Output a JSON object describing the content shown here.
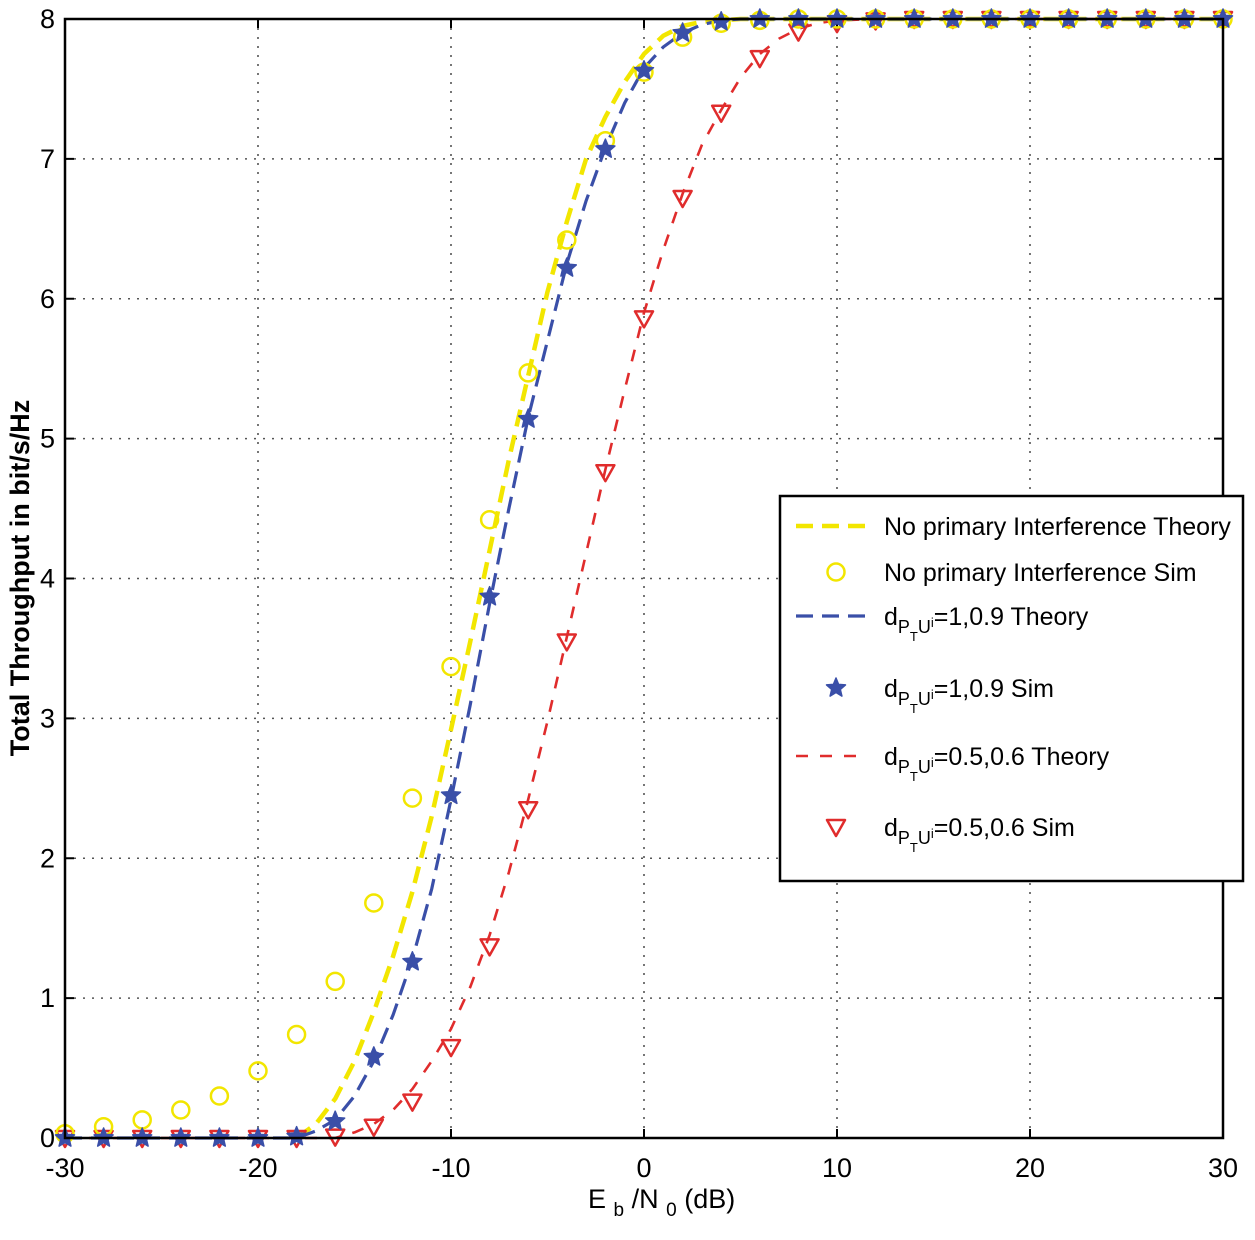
{
  "chart_data": {
    "type": "line",
    "title": "",
    "xlabel": {
      "main": "E",
      "sub1": "b",
      "mid": "/N",
      "sub2": "0",
      "tail": "(dB)"
    },
    "ylabel": "Total Throughput in bit/s/Hz",
    "xlim": [
      -30,
      30
    ],
    "ylim": [
      0,
      8
    ],
    "xticks": [
      -30,
      -20,
      -10,
      0,
      10,
      20,
      30
    ],
    "yticks": [
      0,
      1,
      2,
      3,
      4,
      5,
      6,
      7,
      8
    ],
    "grid": true,
    "legend_position": "center-right",
    "colors": {
      "yellow": "#f2e600",
      "blue": "#3a4fa8",
      "red": "#e02c2c"
    },
    "series": [
      {
        "name": "No primary Interference Theory",
        "style": "dashed-line",
        "color": "#f2e600",
        "x": [
          -18,
          -17,
          -16,
          -15,
          -14,
          -13,
          -12,
          -11,
          -10,
          -9,
          -8,
          -7,
          -6,
          -5,
          -4,
          -3,
          -2,
          -1,
          0,
          1,
          2,
          3,
          4,
          5,
          6,
          8,
          10,
          30
        ],
        "y": [
          0,
          0.1,
          0.28,
          0.55,
          0.9,
          1.3,
          1.76,
          2.3,
          2.92,
          3.55,
          4.2,
          4.85,
          5.45,
          6.05,
          6.55,
          7.0,
          7.3,
          7.55,
          7.75,
          7.88,
          7.95,
          7.98,
          7.99,
          8.0,
          8.0,
          8.0,
          8.0,
          8.0
        ]
      },
      {
        "name": "No primary Interference Sim",
        "style": "circle-marker",
        "color": "#f2e600",
        "x": [
          -30,
          -28,
          -26,
          -24,
          -22,
          -20,
          -18,
          -16,
          -14,
          -12,
          -10,
          -8,
          -6,
          -4,
          -2,
          0,
          2,
          4,
          6,
          8,
          10,
          12,
          14,
          16,
          18,
          20,
          22,
          24,
          26,
          28,
          30
        ],
        "y": [
          0.03,
          0.08,
          0.13,
          0.2,
          0.3,
          0.48,
          0.74,
          1.12,
          1.68,
          2.43,
          3.37,
          4.42,
          5.47,
          6.42,
          7.13,
          7.62,
          7.87,
          7.97,
          7.99,
          8.0,
          8.0,
          8.0,
          8.0,
          8.0,
          8.0,
          8.0,
          8.0,
          8.0,
          8.0,
          8.0,
          8.0
        ]
      },
      {
        "name": "d_{PTU}=1,0.9 Theory",
        "label_main": "d",
        "label_sub": "P",
        "label_subsub": "T",
        "label_sub2": "U",
        "label_supsub": "i",
        "label_tail": "=1,0.9 Theory",
        "style": "dashed-line",
        "color": "#3a4fa8",
        "x": [
          -30,
          -18,
          -17,
          -16,
          -15,
          -14,
          -13,
          -12,
          -11,
          -10,
          -9,
          -8,
          -7,
          -6,
          -5,
          -4,
          -3,
          -2,
          -1,
          0,
          1,
          2,
          3,
          4,
          5,
          6,
          8,
          10,
          30
        ],
        "y": [
          0,
          0,
          0.05,
          0.13,
          0.3,
          0.55,
          0.88,
          1.28,
          1.78,
          2.42,
          3.1,
          3.82,
          4.5,
          5.15,
          5.7,
          6.25,
          6.7,
          7.08,
          7.4,
          7.65,
          7.8,
          7.9,
          7.96,
          7.99,
          8.0,
          8.0,
          8.0,
          8.0,
          8.0
        ]
      },
      {
        "name": "d_{PTU}=1,0.9 Sim",
        "label_main": "d",
        "label_sub": "P",
        "label_subsub": "T",
        "label_sub2": "U",
        "label_supsub": "i",
        "label_tail": "=1,0.9 Sim",
        "style": "star-marker",
        "color": "#3a4fa8",
        "x": [
          -30,
          -28,
          -26,
          -24,
          -22,
          -20,
          -18,
          -16,
          -14,
          -12,
          -10,
          -8,
          -6,
          -4,
          -2,
          0,
          2,
          4,
          6,
          8,
          10,
          12,
          14,
          16,
          18,
          20,
          22,
          24,
          26,
          28,
          30
        ],
        "y": [
          0,
          0,
          0,
          0,
          0,
          0,
          0.01,
          0.12,
          0.58,
          1.26,
          2.45,
          3.87,
          5.14,
          6.22,
          7.07,
          7.63,
          7.9,
          7.98,
          8.0,
          8.0,
          8.0,
          8.0,
          8.0,
          8.0,
          8.0,
          8.0,
          8.0,
          8.0,
          8.0,
          8.0,
          8.0
        ]
      },
      {
        "name": "d_{PTU}=0.5,0.6 Theory",
        "label_main": "d",
        "label_sub": "P",
        "label_subsub": "T",
        "label_sub2": "U",
        "label_supsub": "i",
        "label_tail": "=0.5,0.6 Theory",
        "style": "dashed-line",
        "color": "#e02c2c",
        "x": [
          -30,
          -16,
          -15,
          -14,
          -13,
          -12,
          -11,
          -10,
          -9,
          -8,
          -7,
          -6,
          -5,
          -4,
          -3,
          -2,
          -1,
          0,
          1,
          2,
          3,
          4,
          5,
          6,
          7,
          8,
          9,
          10,
          12,
          30
        ],
        "y": [
          0,
          0,
          0.04,
          0.1,
          0.2,
          0.35,
          0.55,
          0.78,
          1.08,
          1.45,
          1.9,
          2.42,
          2.98,
          3.58,
          4.18,
          4.78,
          5.35,
          5.9,
          6.35,
          6.75,
          7.1,
          7.35,
          7.58,
          7.75,
          7.86,
          7.93,
          7.97,
          7.99,
          8.0,
          8.0
        ]
      },
      {
        "name": "d_{PTU}=0.5,0.6 Sim",
        "label_main": "d",
        "label_sub": "P",
        "label_subsub": "T",
        "label_sub2": "U",
        "label_supsub": "i",
        "label_tail": "=0.5,0.6 Sim",
        "style": "triangle-down-marker",
        "color": "#e02c2c",
        "x": [
          -30,
          -28,
          -26,
          -24,
          -22,
          -20,
          -18,
          -16,
          -14,
          -12,
          -10,
          -8,
          -6,
          -4,
          -2,
          0,
          2,
          4,
          6,
          8,
          10,
          12,
          14,
          16,
          18,
          20,
          22,
          24,
          26,
          28,
          30
        ],
        "y": [
          0,
          0,
          0,
          0,
          0,
          0,
          0,
          0.01,
          0.08,
          0.26,
          0.65,
          1.37,
          2.35,
          3.55,
          4.76,
          5.86,
          6.72,
          7.33,
          7.72,
          7.91,
          7.97,
          7.99,
          8.0,
          8.0,
          8.0,
          8.0,
          8.0,
          8.0,
          8.0,
          8.0,
          8.0
        ]
      }
    ]
  }
}
